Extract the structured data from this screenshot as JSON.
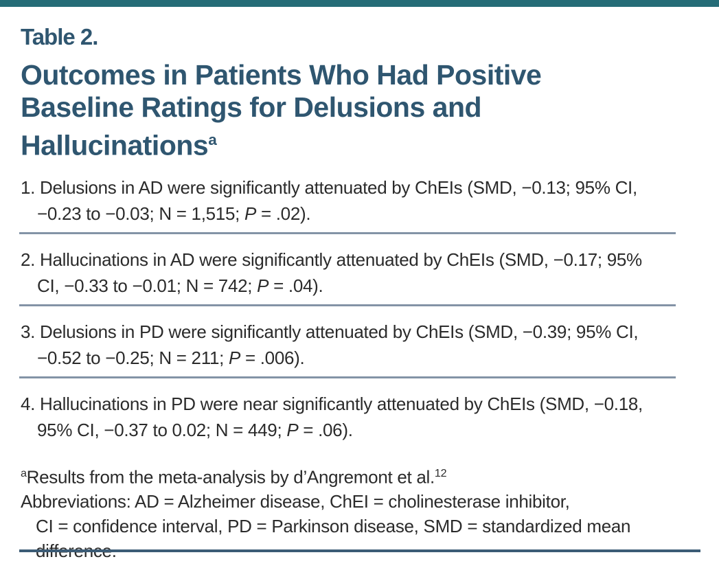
{
  "header": {
    "table_label": "Table 2.",
    "title_lines": [
      "Outcomes in Patients Who Had Positive",
      "Baseline Ratings for Delusions and",
      "Hallucinations"
    ],
    "title_footnote_marker": "a"
  },
  "items": [
    {
      "line1": "1. Delusions in AD were significantly attenuated by ChEIs (SMD, −0.13; 95% CI,",
      "line2_pre": "−0.23 to −0.03; N = 1,515; ",
      "p_label": "P",
      "line2_post": " = .02)."
    },
    {
      "line1": "2. Hallucinations in AD were significantly attenuated by ChEIs (SMD, −0.17; 95%",
      "line2_pre": "CI, −0.33 to −0.01; N = 742; ",
      "p_label": "P",
      "line2_post": " = .04)."
    },
    {
      "line1": "3. Delusions in PD were significantly attenuated by ChEIs (SMD, −0.39; 95% CI,",
      "line2_pre": "−0.52 to −0.25; N = 211; ",
      "p_label": "P",
      "line2_post": " = .006)."
    },
    {
      "line1": "4. Hallucinations in PD were near significantly attenuated by ChEIs (SMD, −0.18,",
      "line2_pre": "95% CI, −0.37 to 0.02; N = 449; ",
      "p_label": "P",
      "line2_post": " = .06)."
    }
  ],
  "footnotes": {
    "marker_a": "a",
    "a_text": "Results from the meta-analysis by d’Angremont et al.",
    "a_ref": "12",
    "abbrev_lines": [
      "Abbreviations: AD = Alzheimer disease, ChEI = cholinesterase inhibitor,",
      "CI = confidence interval, PD = Parkinson disease, SMD = standardized mean",
      "difference."
    ]
  },
  "colors": {
    "accent_teal": "#256c77",
    "heading_blue": "#2f5670",
    "body_text": "#2b2b2b",
    "divider_gray_blue": "#8393a6",
    "bottom_rule_blue": "#3c5c76"
  }
}
